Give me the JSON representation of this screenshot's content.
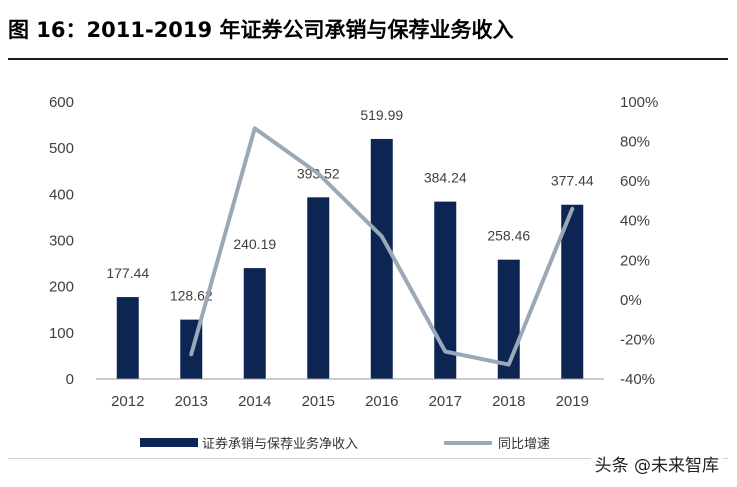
{
  "title": "图 16：2011-2019 年证券公司承销与保荐业务收入",
  "watermark": "头条 @未来智库",
  "colors": {
    "bar": "#0d2553",
    "line": "#9aa8b8",
    "axis": "#999999"
  },
  "chart_data": {
    "type": "bar",
    "categories": [
      "2012",
      "2013",
      "2014",
      "2015",
      "2016",
      "2017",
      "2018",
      "2019"
    ],
    "series": [
      {
        "name": "证券承销与保荐业务净收入",
        "type": "bar",
        "axis": "left",
        "values": [
          177.44,
          128.62,
          240.19,
          393.52,
          519.99,
          384.24,
          258.46,
          377.44
        ],
        "labels": [
          "177.44",
          "128.62",
          "240.19",
          "393.52",
          "519.99",
          "384.24",
          "258.46",
          "377.44"
        ]
      },
      {
        "name": "同比增速",
        "type": "line",
        "axis": "right",
        "values": [
          null,
          -27.5,
          86.7,
          63.8,
          32.1,
          -26.1,
          -32.7,
          46.0
        ]
      }
    ],
    "ylim": [
      0,
      600
    ],
    "yticks": [
      "0",
      "100",
      "200",
      "300",
      "400",
      "500",
      "600"
    ],
    "y2lim": [
      -40,
      100
    ],
    "y2ticks": [
      "-40%",
      "-20%",
      "0%",
      "20%",
      "40%",
      "60%",
      "80%",
      "100%"
    ],
    "legend_position": "bottom",
    "grid": false
  }
}
